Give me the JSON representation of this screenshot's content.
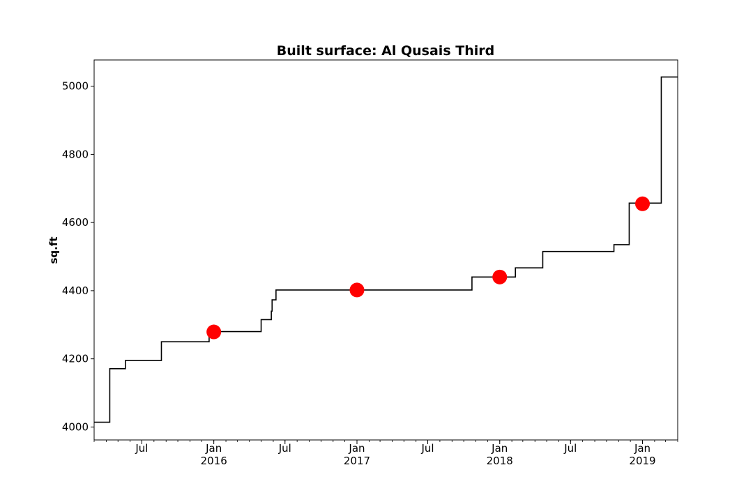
{
  "chart_data": {
    "type": "line",
    "title": "Built surface: Al Qusais Third",
    "xlabel": "",
    "ylabel": "sq.ft",
    "xlim": [
      "2015-03-01",
      "2019-04-01"
    ],
    "ylim": [
      3962,
      5077
    ],
    "grid": false,
    "legend": "none",
    "y_ticks": [
      4000,
      4200,
      4400,
      4600,
      4800,
      5000
    ],
    "x_major_ticks": [
      {
        "date": "2015-07-01",
        "label": "Jul",
        "year": ""
      },
      {
        "date": "2016-01-01",
        "label": "Jan",
        "year": "2016"
      },
      {
        "date": "2016-07-01",
        "label": "Jul",
        "year": ""
      },
      {
        "date": "2017-01-01",
        "label": "Jan",
        "year": "2017"
      },
      {
        "date": "2017-07-01",
        "label": "Jul",
        "year": ""
      },
      {
        "date": "2018-01-01",
        "label": "Jan",
        "year": "2018"
      },
      {
        "date": "2018-07-01",
        "label": "Jul",
        "year": ""
      },
      {
        "date": "2019-01-01",
        "label": "Jan",
        "year": "2019"
      }
    ],
    "series": [
      {
        "kind": "step",
        "color": "#000000",
        "points": [
          {
            "x": "2015-03-01",
            "y": 4014
          },
          {
            "x": "2015-04-10",
            "y": 4171
          },
          {
            "x": "2015-05-20",
            "y": 4195
          },
          {
            "x": "2015-08-20",
            "y": 4250
          },
          {
            "x": "2015-12-20",
            "y": 4280
          },
          {
            "x": "2016-05-01",
            "y": 4315
          },
          {
            "x": "2016-05-27",
            "y": 4340
          },
          {
            "x": "2016-05-29",
            "y": 4373
          },
          {
            "x": "2016-06-08",
            "y": 4402
          },
          {
            "x": "2017-10-22",
            "y": 4440
          },
          {
            "x": "2018-02-10",
            "y": 4467
          },
          {
            "x": "2018-04-21",
            "y": 4515
          },
          {
            "x": "2018-10-20",
            "y": 4535
          },
          {
            "x": "2018-11-28",
            "y": 4657
          },
          {
            "x": "2019-02-18",
            "y": 5027
          },
          {
            "x": "2019-04-01",
            "y": 5027
          }
        ]
      },
      {
        "kind": "markers",
        "color": "#ff0000",
        "points": [
          {
            "x": "2016-01-01",
            "y": 4279
          },
          {
            "x": "2017-01-01",
            "y": 4402
          },
          {
            "x": "2018-01-01",
            "y": 4440
          },
          {
            "x": "2019-01-01",
            "y": 4655
          }
        ]
      }
    ]
  }
}
